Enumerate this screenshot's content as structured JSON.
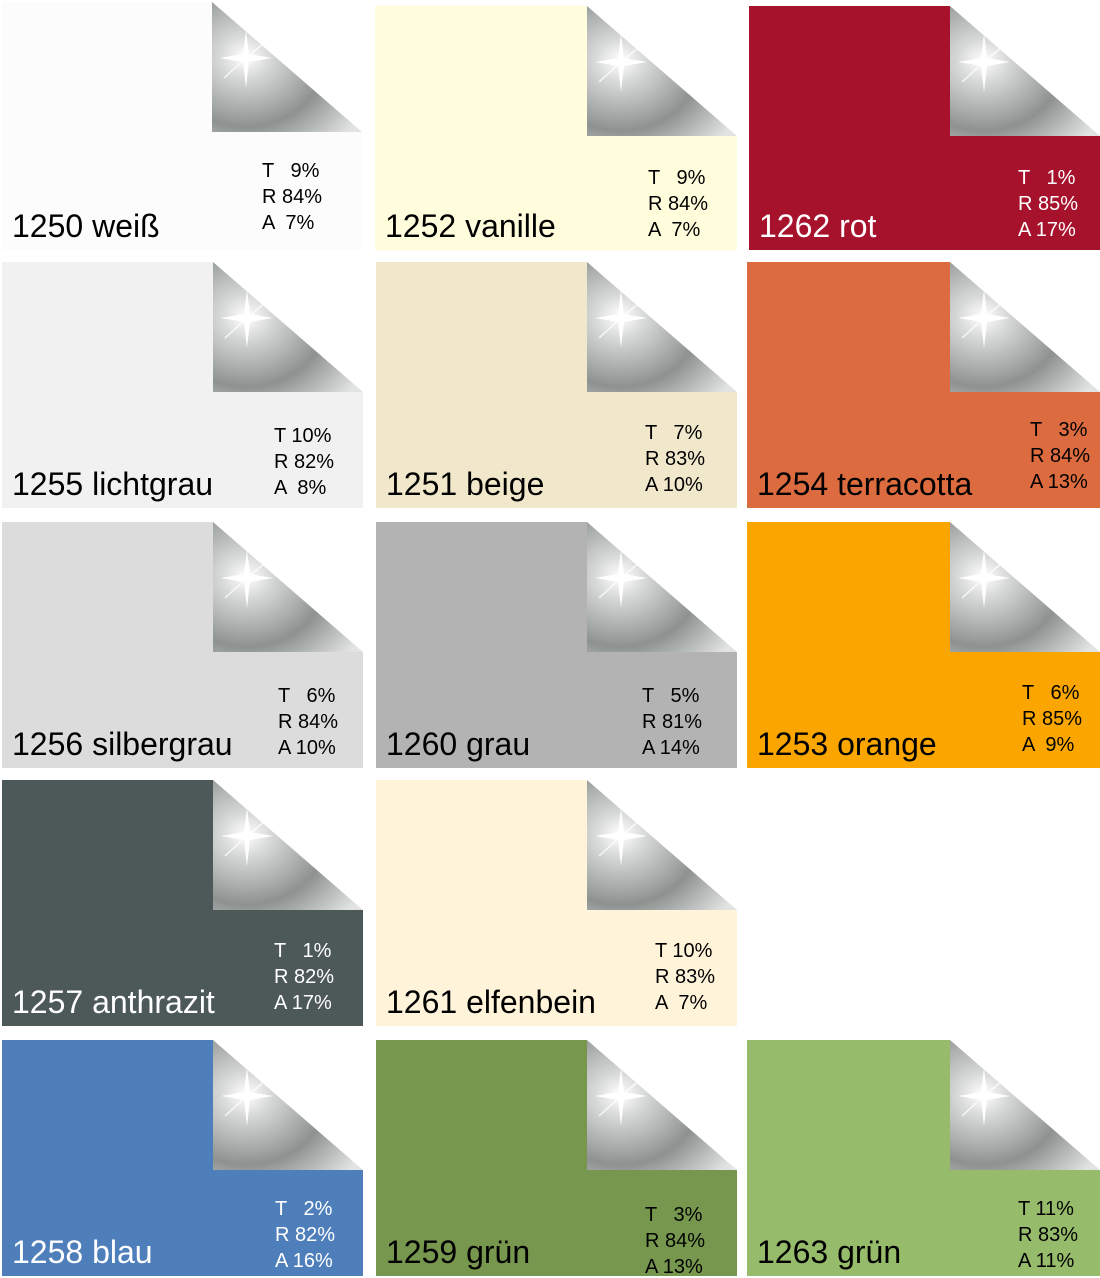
{
  "swatches": [
    {
      "name": "1250 weiß",
      "color": "#fcfcfc",
      "text": "#000000",
      "t": "T   9%",
      "r": "R 84%",
      "a": "A  7%"
    },
    {
      "name": "1252 vanille",
      "color": "#fffddc",
      "text": "#000000",
      "t": "T   9%",
      "r": "R 84%",
      "a": "A  7%"
    },
    {
      "name": "1262 rot",
      "color": "#a6122c",
      "text": "#ffffff",
      "t": "T   1%",
      "r": "R 85%",
      "a": "A 17%"
    },
    {
      "name": "1255 lichtgrau",
      "color": "#f1f1f1",
      "text": "#000000",
      "t": "T 10%",
      "r": "R 82%",
      "a": "A  8%"
    },
    {
      "name": "1251 beige",
      "color": "#f1e8cc",
      "text": "#000000",
      "t": "T   7%",
      "r": "R 83%",
      "a": "A 10%"
    },
    {
      "name": "1254 terracotta",
      "color": "#dc6b3f",
      "text": "#000000",
      "t": "T   3%",
      "r": "R 84%",
      "a": "A 13%"
    },
    {
      "name": "1256 silbergrau",
      "color": "#dcdcdc",
      "text": "#000000",
      "t": "T   6%",
      "r": "R 84%",
      "a": "A 10%"
    },
    {
      "name": "1260 grau",
      "color": "#b3b3b3",
      "text": "#000000",
      "t": "T   5%",
      "r": "R 81%",
      "a": "A 14%"
    },
    {
      "name": "1253 orange",
      "color": "#fba600",
      "text": "#000000",
      "t": "T   6%",
      "r": "R 85%",
      "a": "A  9%"
    },
    {
      "name": "1257 anthrazit",
      "color": "#4d5859",
      "text": "#ffffff",
      "t": "T   1%",
      "r": "R 82%",
      "a": "A 17%"
    },
    {
      "name": "1261 elfenbein",
      "color": "#fff3da",
      "text": "#000000",
      "t": "T 10%",
      "r": "R 83%",
      "a": "A  7%"
    },
    {
      "name": "1258 blau",
      "color": "#4f7fbb",
      "text": "#ffffff",
      "t": "T   2%",
      "r": "R 82%",
      "a": "A 16%"
    },
    {
      "name": "1259 grün",
      "color": "#76974d",
      "text": "#000000",
      "t": "T   3%",
      "r": "R 84%",
      "a": "A 13%"
    },
    {
      "name": "1263 grün",
      "color": "#96bb6b",
      "text": "#000000",
      "t": "T 11%",
      "r": "R 83%",
      "a": "A 11%"
    }
  ]
}
